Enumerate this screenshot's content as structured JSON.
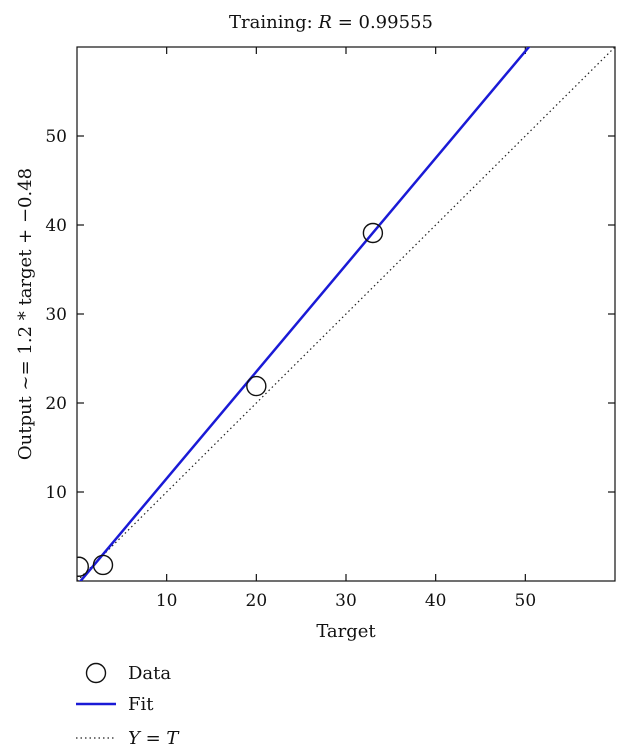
{
  "chart_data": {
    "type": "scatter",
    "title": "Training: R = 0.99555",
    "title_prefix": "Training: ",
    "title_var": "R",
    "title_suffix": " = 0.99555",
    "xlabel": "Target",
    "ylabel": "Output ~= 1.2 * target + −0.48",
    "xlim": [
      0,
      60
    ],
    "ylim": [
      0,
      60
    ],
    "xticks": [
      10,
      20,
      30,
      40,
      50
    ],
    "yticks": [
      10,
      20,
      30,
      40,
      50
    ],
    "xtick_labels": [
      "10",
      "20",
      "30",
      "40",
      "50"
    ],
    "ytick_labels": [
      "10",
      "20",
      "30",
      "40",
      "50"
    ],
    "grid": false,
    "legend_position": "bottom-left outside",
    "series": [
      {
        "name": "Data",
        "kind": "scatter",
        "marker": "open-circle",
        "color": "#111111",
        "x": [
          0.2,
          2.9,
          20.0,
          33.0
        ],
        "y": [
          1.6,
          1.8,
          21.9,
          39.1
        ]
      },
      {
        "name": "Fit",
        "kind": "line",
        "color": "#1a1ad6",
        "slope": 1.2,
        "intercept": -0.48,
        "x": [
          0,
          60
        ],
        "y": [
          -0.48,
          71.52
        ]
      },
      {
        "name": "Y = T",
        "name_var1": "Y",
        "name_op": " = ",
        "name_var2": "T",
        "kind": "line",
        "style": "dotted",
        "color": "#222222",
        "x": [
          0,
          60
        ],
        "y": [
          0,
          60
        ]
      }
    ]
  }
}
